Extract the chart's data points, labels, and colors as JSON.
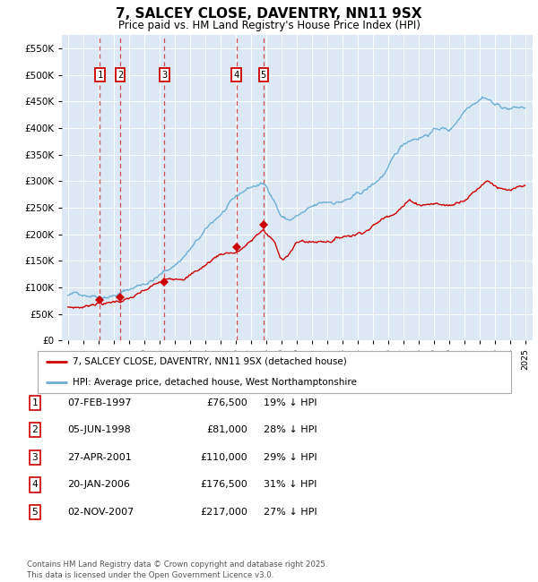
{
  "title": "7, SALCEY CLOSE, DAVENTRY, NN11 9SX",
  "subtitle": "Price paid vs. HM Land Registry's House Price Index (HPI)",
  "plot_bg_color": "#dce9f5",
  "ylim": [
    0,
    575000
  ],
  "yticks": [
    0,
    50000,
    100000,
    150000,
    200000,
    250000,
    300000,
    350000,
    400000,
    450000,
    500000,
    550000
  ],
  "ytick_labels": [
    "£0",
    "£50K",
    "£100K",
    "£150K",
    "£200K",
    "£250K",
    "£300K",
    "£350K",
    "£400K",
    "£450K",
    "£500K",
    "£550K"
  ],
  "sale_date_years": [
    1997.097,
    1998.426,
    2001.319,
    2006.055,
    2007.838
  ],
  "sale_prices": [
    76500,
    81000,
    110000,
    176500,
    217000
  ],
  "sale_labels": [
    "1",
    "2",
    "3",
    "4",
    "5"
  ],
  "legend_entries": [
    {
      "label": "7, SALCEY CLOSE, DAVENTRY, NN11 9SX (detached house)",
      "color": "#cc0000"
    },
    {
      "label": "HPI: Average price, detached house, West Northamptonshire",
      "color": "#6baed6"
    }
  ],
  "table_entries": [
    {
      "num": "1",
      "date": "07-FEB-1997",
      "price": "£76,500",
      "hpi": "19% ↓ HPI"
    },
    {
      "num": "2",
      "date": "05-JUN-1998",
      "price": "£81,000",
      "hpi": "28% ↓ HPI"
    },
    {
      "num": "3",
      "date": "27-APR-2001",
      "price": "£110,000",
      "hpi": "29% ↓ HPI"
    },
    {
      "num": "4",
      "date": "20-JAN-2006",
      "price": "£176,500",
      "hpi": "31% ↓ HPI"
    },
    {
      "num": "5",
      "date": "02-NOV-2007",
      "price": "£217,000",
      "hpi": "27% ↓ HPI"
    }
  ],
  "footer": "Contains HM Land Registry data © Crown copyright and database right 2025.\nThis data is licensed under the Open Government Licence v3.0.",
  "hpi_color": "#6baed6",
  "sale_color": "#cc0000",
  "vline_color": "#cc3333",
  "grid_color": "#ffffff"
}
